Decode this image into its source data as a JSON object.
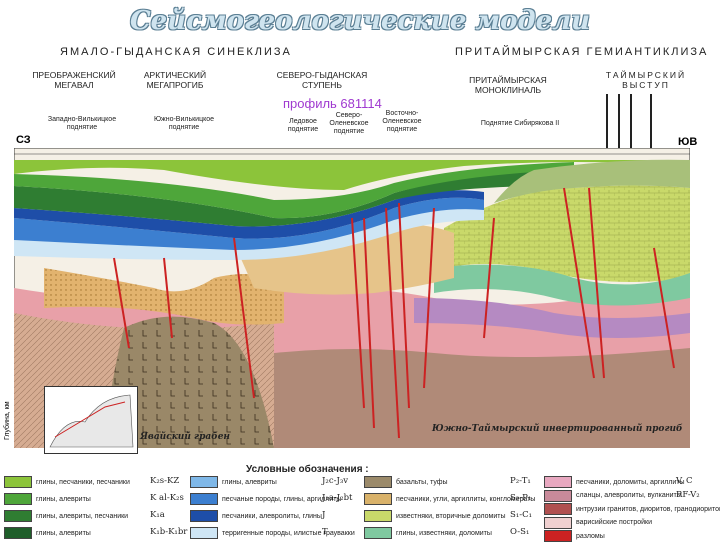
{
  "title": "Сейсмогеологические модели",
  "regions": {
    "left": "ЯМАЛО-ГЫДАНСКАЯ СИНЕКЛИЗА",
    "right": "ПРИТАЙМЫРСКАЯ ГЕМИАНТИКЛИЗА"
  },
  "units": {
    "preobrazhensky": "ПРЕОБРАЖЕНСКИЙ МЕГАВАЛ",
    "arctic": "АРКТИЧЕСКИЙ МЕГАПРОГИБ",
    "severo_gydan": "СЕВЕРО-ГЫДАНСКАЯ СТУПЕНЬ",
    "pritaimyr": "ПРИТАЙМЫРСКАЯ МОНОКЛИНАЛЬ",
    "taimyr": "ТАЙМЫРСКИЙ ВЫСТУП"
  },
  "profile_label": "профиль 681114",
  "subunits": {
    "zapadno_vilkitsky": "Западно-Вилькицкое поднятие",
    "yuzhno_vilkitsky": "Южно-Вилькицкое поднятие",
    "ledovoe": "Ледовое поднятие",
    "severo_oleneotskoe": "Северо-Оленевское поднятие",
    "vostochno_olenevskoe": "Восточно-Оленевское поднятие",
    "sibiryakova": "Поднятие Сибирякова II"
  },
  "edge": {
    "sz": "СЗ",
    "yuv": "ЮВ",
    "depth_axis": "Глубина, км"
  },
  "section_labels": {
    "yavai_graben": "Явайский грабен",
    "yuzhno_taimyr": "Южно-Таймырский инвертированный прогиб"
  },
  "legend_title": "Условные обозначения :",
  "legend_col1": [
    {
      "text": "глины, песчаники, песчаники",
      "age": "K₂s-KZ",
      "color": "#8cc43a"
    },
    {
      "text": "глины, алевриты",
      "age": "K al-K₂s",
      "color": "#4ea63a"
    },
    {
      "text": "глины, алевриты, песчаники",
      "age": "K₁a",
      "color": "#2f7d32"
    },
    {
      "text": "глины, алевриты",
      "age": "K₁b-K₁br",
      "color": "#1f5e2a"
    }
  ],
  "legend_col2": [
    {
      "text": "глины, алевриты",
      "age": "J₂c-J₃v",
      "color": "#7fb8e8"
    },
    {
      "text": "песчаные породы, глины, аргиллиты",
      "age": "J₁a-J₂bt",
      "color": "#3c7fd0"
    },
    {
      "text": "песчаники, алевролиты, глины",
      "age": "J",
      "color": "#1e4ea8"
    },
    {
      "text": "терригенные породы, илистые граувакки",
      "age": "T",
      "color": "#cfe6f5"
    }
  ],
  "legend_col3": [
    {
      "text": "базальты, туфы",
      "age": "P₂-T₁",
      "color": "#9b8a6a"
    },
    {
      "text": "песчаники, угли, аргиллиты, конгломераты",
      "age": "S₂-P₁",
      "color": "#d9b26a"
    },
    {
      "text": "известняки, вторичные доломиты",
      "age": "S₁-C₁",
      "color": "#c9d96a"
    },
    {
      "text": "глины, известняки, доломиты",
      "age": "O-S₁",
      "color": "#7fc9a0"
    }
  ],
  "legend_col4": [
    {
      "text": "песчаники, доломиты, аргиллиты",
      "age": "V, C",
      "color": "#e8a8c0"
    },
    {
      "text": "сланцы, алевролиты, вулканиты",
      "age": "RF-V₂",
      "color": "#c98a9a"
    },
    {
      "text": "интрузии гранитов, диоритов, гранодиоритов",
      "age": "",
      "color": "#b05050"
    },
    {
      "text": "варисийские постройки",
      "age": "",
      "color": "#f0d0d0"
    },
    {
      "text": "разломы",
      "age": "",
      "color": "#cc2222"
    }
  ]
}
